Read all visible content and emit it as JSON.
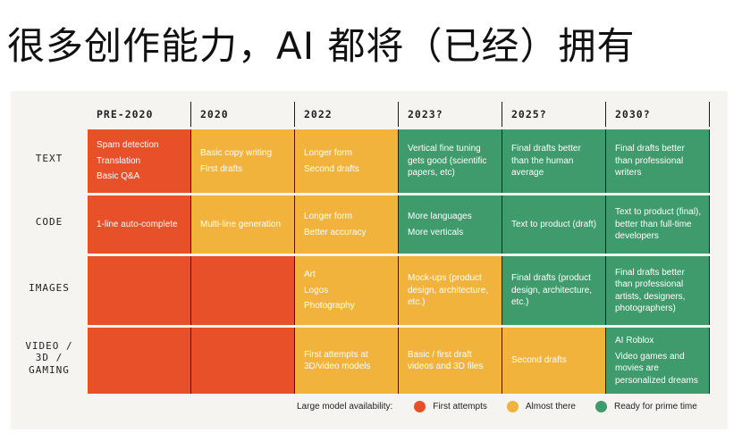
{
  "title": "很多创作能力，AI 都将（已经）拥有",
  "colors": {
    "first": "#e8502a",
    "almost": "#f2b33c",
    "ready": "#3f9b6c"
  },
  "columns": [
    "PRE-2020",
    "2020",
    "2022",
    "2023?",
    "2025?",
    "2030?"
  ],
  "rows": [
    {
      "label": "TEXT",
      "cells": [
        {
          "status": "first",
          "lines": [
            "Spam detection",
            "Translation",
            "Basic Q&A"
          ]
        },
        {
          "status": "almost",
          "lines": [
            "Basic copy writing",
            "First drafts"
          ]
        },
        {
          "status": "almost",
          "lines": [
            "Longer form",
            "Second drafts"
          ]
        },
        {
          "status": "ready",
          "lines": [
            "Vertical fine tuning gets good (scientific papers, etc)"
          ]
        },
        {
          "status": "ready",
          "lines": [
            "Final drafts better than the human average"
          ]
        },
        {
          "status": "ready",
          "lines": [
            "Final drafts better than professional writers"
          ]
        }
      ]
    },
    {
      "label": "CODE",
      "cells": [
        {
          "status": "first",
          "lines": [
            "1-line auto-complete"
          ]
        },
        {
          "status": "almost",
          "lines": [
            "Multi-line generation"
          ]
        },
        {
          "status": "almost",
          "lines": [
            "Longer form",
            "Better accuracy"
          ]
        },
        {
          "status": "ready",
          "lines": [
            "More languages",
            "More verticals"
          ]
        },
        {
          "status": "ready",
          "lines": [
            "Text to product (draft)"
          ]
        },
        {
          "status": "ready",
          "lines": [
            "Text to product (final), better than full-time developers"
          ]
        }
      ]
    },
    {
      "label": "IMAGES",
      "cells": [
        {
          "status": "first",
          "lines": []
        },
        {
          "status": "first",
          "lines": []
        },
        {
          "status": "almost",
          "lines": [
            "Art",
            "Logos",
            "Photography"
          ]
        },
        {
          "status": "almost",
          "lines": [
            "Mock-ups (product design, architecture, etc.)"
          ]
        },
        {
          "status": "ready",
          "lines": [
            "Final drafts (product design, architecture, etc.)"
          ]
        },
        {
          "status": "ready",
          "lines": [
            "Final drafts better than professional artists, designers, photographers)"
          ]
        }
      ]
    },
    {
      "label": "VIDEO / 3D / GAMING",
      "cells": [
        {
          "status": "first",
          "lines": []
        },
        {
          "status": "first",
          "lines": []
        },
        {
          "status": "almost",
          "lines": [
            "First attempts at 3D/video models"
          ]
        },
        {
          "status": "almost",
          "lines": [
            "Basic / first draft videos and 3D files"
          ]
        },
        {
          "status": "almost",
          "lines": [
            "Second drafts"
          ]
        },
        {
          "status": "ready",
          "lines": [
            "AI Roblox",
            "Video games and movies are personalized dreams"
          ]
        }
      ]
    }
  ],
  "legend": {
    "caption": "Large model availability:",
    "items": [
      {
        "status": "first",
        "label": "First attempts"
      },
      {
        "status": "almost",
        "label": "Almost there"
      },
      {
        "status": "ready",
        "label": "Ready for prime time"
      }
    ]
  }
}
